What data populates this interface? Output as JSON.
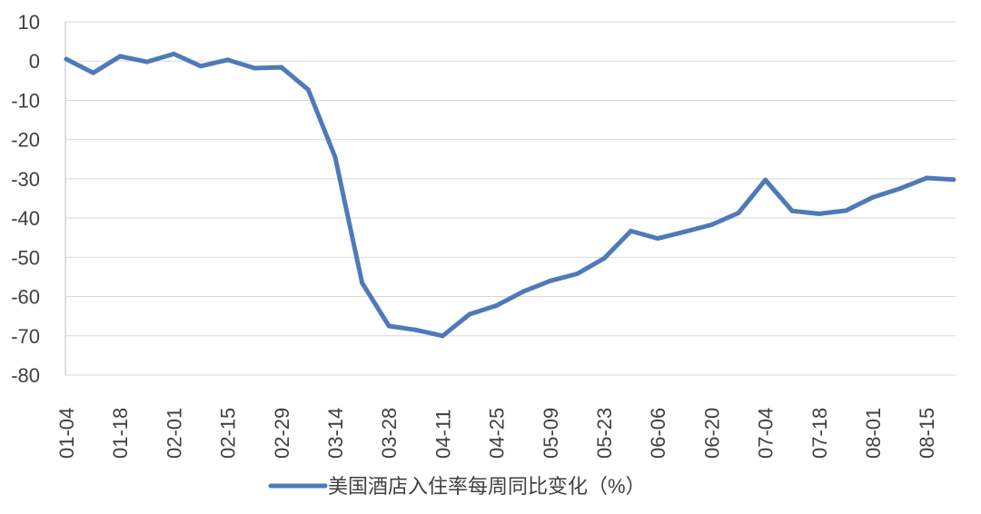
{
  "chart_data": {
    "type": "line",
    "title": "",
    "xlabel": "",
    "ylabel": "",
    "ylim": [
      -80,
      10
    ],
    "yticks": [
      10,
      0,
      -10,
      -20,
      -30,
      -40,
      -50,
      -60,
      -70,
      -80
    ],
    "grid": true,
    "legend_position": "bottom",
    "tick_labels": [
      "01-04",
      "01-18",
      "02-01",
      "02-15",
      "02-29",
      "03-14",
      "03-28",
      "04-11",
      "04-25",
      "05-09",
      "05-23",
      "06-06",
      "06-20",
      "07-04",
      "07-18",
      "08-01",
      "08-15"
    ],
    "series": [
      {
        "name": "美国酒店入住率每周同比变化（%）",
        "color": "#4f79b8",
        "values": [
          0.5,
          -3,
          1.2,
          -0.2,
          1.8,
          -1.3,
          0.3,
          -1.8,
          -1.6,
          -7.3,
          -24.5,
          -56.5,
          -67.5,
          -68.5,
          -70,
          -64.5,
          -62.3,
          -58.7,
          -56,
          -54.2,
          -50.3,
          -43.3,
          -45.2,
          -43.5,
          -41.7,
          -38.7,
          -30.3,
          -38.2,
          -38.9,
          -38.1,
          -34.7,
          -32.5,
          -29.8,
          -30.2
        ]
      }
    ]
  }
}
